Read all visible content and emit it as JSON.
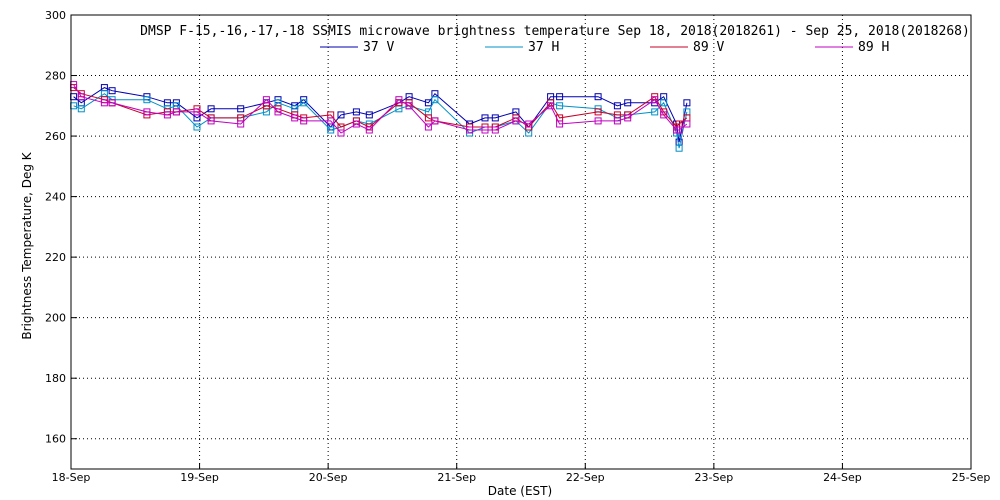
{
  "chart_data": {
    "type": "line",
    "title": "DMSP F-15,-16,-17,-18 SSMIS microwave brightness temperature Sep 18, 2018(2018261) - Sep 25, 2018(2018268)",
    "xlabel": "Date (EST)",
    "ylabel": "Brightness Temperature, Deg K",
    "x_tick_labels": [
      "18-Sep",
      "19-Sep",
      "20-Sep",
      "21-Sep",
      "22-Sep",
      "23-Sep",
      "24-Sep",
      "25-Sep"
    ],
    "xlim": [
      0,
      7
    ],
    "ylim": [
      150,
      300
    ],
    "y_ticks": [
      160,
      180,
      200,
      220,
      240,
      260,
      280,
      300
    ],
    "grid": true,
    "legend": "top",
    "marker": "square",
    "series": [
      {
        "name": "37 V",
        "color": "#0000b0",
        "x": [
          0.02,
          0.08,
          0.26,
          0.32,
          0.59,
          0.75,
          0.82,
          0.98,
          1.09,
          1.32,
          1.52,
          1.61,
          1.74,
          1.81,
          2.02,
          2.1,
          2.22,
          2.32,
          2.55,
          2.63,
          2.78,
          2.83,
          3.1,
          3.22,
          3.3,
          3.46,
          3.56,
          3.73,
          3.8,
          4.1,
          4.25,
          4.33,
          4.54,
          4.61,
          4.71,
          4.73,
          4.79
        ],
        "y": [
          273,
          271,
          276,
          275,
          273,
          271,
          271,
          266,
          269,
          269,
          271,
          272,
          270,
          272,
          263,
          267,
          268,
          267,
          271,
          273,
          271,
          274,
          264,
          266,
          266,
          268,
          263,
          273,
          273,
          273,
          270,
          271,
          271,
          273,
          264,
          258,
          271
        ]
      },
      {
        "name": "37 H",
        "color": "#0090c8",
        "x": [
          0.02,
          0.08,
          0.26,
          0.32,
          0.59,
          0.75,
          0.82,
          0.98,
          1.09,
          1.32,
          1.52,
          1.61,
          1.74,
          1.81,
          2.02,
          2.1,
          2.22,
          2.32,
          2.55,
          2.63,
          2.78,
          2.83,
          3.1,
          3.22,
          3.3,
          3.46,
          3.56,
          3.73,
          3.8,
          4.1,
          4.25,
          4.33,
          4.54,
          4.61,
          4.71,
          4.73,
          4.79
        ],
        "y": [
          270,
          269,
          274,
          272,
          272,
          269,
          270,
          263,
          266,
          266,
          268,
          271,
          269,
          271,
          262,
          263,
          265,
          264,
          269,
          270,
          268,
          272,
          261,
          263,
          263,
          265,
          261,
          271,
          270,
          269,
          266,
          267,
          268,
          271,
          261,
          256,
          268
        ]
      },
      {
        "name": "89 V",
        "color": "#c80028",
        "x": [
          0.02,
          0.08,
          0.26,
          0.32,
          0.59,
          0.75,
          0.82,
          0.98,
          1.09,
          1.32,
          1.52,
          1.61,
          1.74,
          1.81,
          2.02,
          2.1,
          2.22,
          2.32,
          2.55,
          2.63,
          2.78,
          2.83,
          3.1,
          3.22,
          3.3,
          3.46,
          3.56,
          3.73,
          3.8,
          4.1,
          4.25,
          4.33,
          4.54,
          4.61,
          4.71,
          4.73,
          4.79
        ],
        "y": [
          276,
          274,
          272,
          271,
          267,
          268,
          268,
          269,
          266,
          266,
          270,
          269,
          267,
          266,
          267,
          263,
          265,
          263,
          271,
          271,
          266,
          265,
          263,
          263,
          263,
          266,
          263,
          271,
          266,
          268,
          267,
          267,
          273,
          268,
          263,
          264,
          266
        ]
      },
      {
        "name": "89 H",
        "color": "#c000c0",
        "x": [
          0.02,
          0.08,
          0.26,
          0.32,
          0.59,
          0.75,
          0.82,
          0.98,
          1.09,
          1.32,
          1.52,
          1.61,
          1.74,
          1.81,
          2.02,
          2.1,
          2.22,
          2.32,
          2.55,
          2.63,
          2.78,
          2.83,
          3.1,
          3.22,
          3.3,
          3.46,
          3.56,
          3.73,
          3.8,
          4.1,
          4.25,
          4.33,
          4.54,
          4.61,
          4.71,
          4.73,
          4.79
        ],
        "y": [
          277,
          273,
          271,
          271,
          268,
          267,
          268,
          268,
          265,
          264,
          272,
          268,
          266,
          265,
          265,
          261,
          264,
          262,
          272,
          270,
          263,
          265,
          262,
          262,
          262,
          265,
          264,
          270,
          264,
          265,
          265,
          266,
          272,
          267,
          262,
          262,
          264
        ]
      }
    ]
  }
}
